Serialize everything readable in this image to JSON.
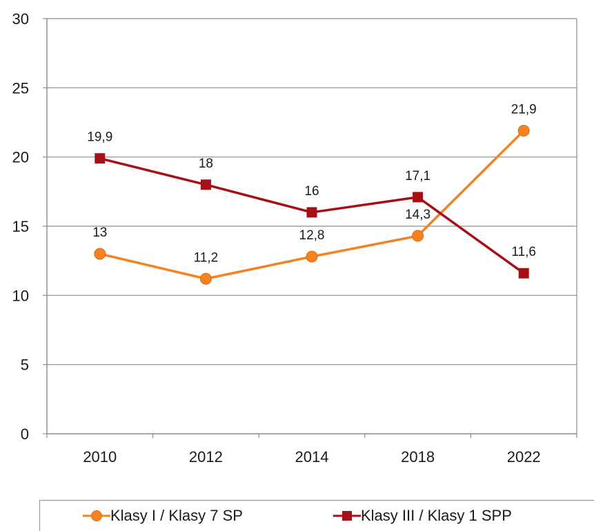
{
  "chart_data": {
    "type": "line",
    "categories": [
      "2010",
      "2012",
      "2014",
      "2018",
      "2022"
    ],
    "series": [
      {
        "name": "Klasy I / Klasy 7 SP",
        "values": [
          13,
          11.2,
          12.8,
          14.3,
          21.9
        ],
        "labels": [
          "13",
          "11,2",
          "12,8",
          "14,3",
          "21,9"
        ],
        "color": "#f58220",
        "marker": "circle"
      },
      {
        "name": "Klasy III / Klasy 1 SPP",
        "values": [
          19.9,
          18,
          16,
          17.1,
          11.6
        ],
        "labels": [
          "19,9",
          "18",
          "16",
          "17,1",
          "11,6"
        ],
        "color": "#a50f15",
        "marker": "square"
      }
    ],
    "yticks": [
      "0",
      "5",
      "10",
      "15",
      "20",
      "25",
      "30"
    ],
    "ylim": [
      0,
      30
    ],
    "grid": true,
    "legend": "bottom"
  }
}
